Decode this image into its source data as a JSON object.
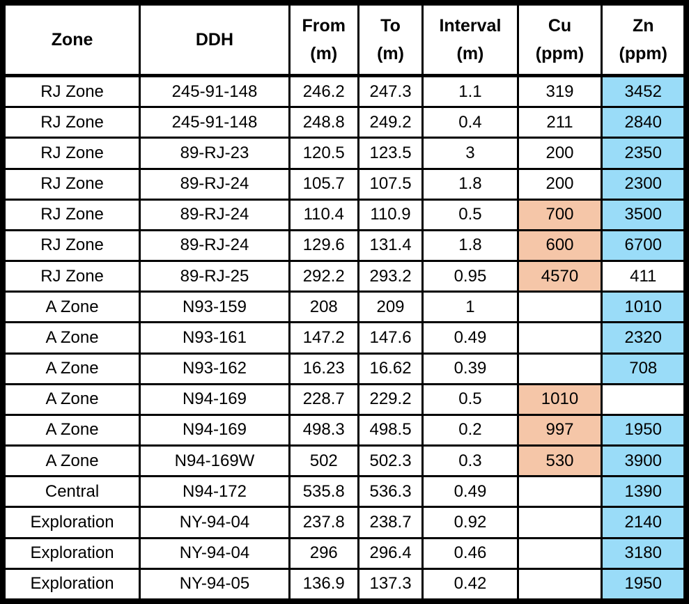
{
  "colors": {
    "cu_highlight": "#F5C6A8",
    "zn_highlight": "#9ADCF8"
  },
  "headers": [
    "Zone",
    "DDH",
    "From\n(m)",
    "To\n(m)",
    "Interval\n(m)",
    "Cu\n(ppm)",
    "Zn\n(ppm)"
  ],
  "rows": [
    {
      "zone": "RJ Zone",
      "ddh": "245-91-148",
      "from": "246.2",
      "to": "247.3",
      "interval": "1.1",
      "cu": "319",
      "zn": "3452",
      "cu_hl": false,
      "zn_hl": true
    },
    {
      "zone": "RJ Zone",
      "ddh": "245-91-148",
      "from": "248.8",
      "to": "249.2",
      "interval": "0.4",
      "cu": "211",
      "zn": "2840",
      "cu_hl": false,
      "zn_hl": true
    },
    {
      "zone": "RJ Zone",
      "ddh": "89-RJ-23",
      "from": "120.5",
      "to": "123.5",
      "interval": "3",
      "cu": "200",
      "zn": "2350",
      "cu_hl": false,
      "zn_hl": true
    },
    {
      "zone": "RJ Zone",
      "ddh": "89-RJ-24",
      "from": "105.7",
      "to": "107.5",
      "interval": "1.8",
      "cu": "200",
      "zn": "2300",
      "cu_hl": false,
      "zn_hl": true
    },
    {
      "zone": "RJ Zone",
      "ddh": "89-RJ-24",
      "from": "110.4",
      "to": "110.9",
      "interval": "0.5",
      "cu": "700",
      "zn": "3500",
      "cu_hl": true,
      "zn_hl": true
    },
    {
      "zone": "RJ Zone",
      "ddh": "89-RJ-24",
      "from": "129.6",
      "to": "131.4",
      "interval": "1.8",
      "cu": "600",
      "zn": "6700",
      "cu_hl": true,
      "zn_hl": true
    },
    {
      "zone": "RJ Zone",
      "ddh": "89-RJ-25",
      "from": "292.2",
      "to": "293.2",
      "interval": "0.95",
      "cu": "4570",
      "zn": "411",
      "cu_hl": true,
      "zn_hl": false
    },
    {
      "zone": "A Zone",
      "ddh": "N93-159",
      "from": "208",
      "to": "209",
      "interval": "1",
      "cu": "",
      "zn": "1010",
      "cu_hl": false,
      "zn_hl": true
    },
    {
      "zone": "A Zone",
      "ddh": "N93-161",
      "from": "147.2",
      "to": "147.6",
      "interval": "0.49",
      "cu": "",
      "zn": "2320",
      "cu_hl": false,
      "zn_hl": true
    },
    {
      "zone": "A Zone",
      "ddh": "N93-162",
      "from": "16.23",
      "to": "16.62",
      "interval": "0.39",
      "cu": "",
      "zn": "708",
      "cu_hl": false,
      "zn_hl": true
    },
    {
      "zone": "A Zone",
      "ddh": "N94-169",
      "from": "228.7",
      "to": "229.2",
      "interval": "0.5",
      "cu": "1010",
      "zn": "",
      "cu_hl": true,
      "zn_hl": false
    },
    {
      "zone": "A Zone",
      "ddh": "N94-169",
      "from": "498.3",
      "to": "498.5",
      "interval": "0.2",
      "cu": "997",
      "zn": "1950",
      "cu_hl": true,
      "zn_hl": true
    },
    {
      "zone": "A Zone",
      "ddh": "N94-169W",
      "from": "502",
      "to": "502.3",
      "interval": "0.3",
      "cu": "530",
      "zn": "3900",
      "cu_hl": true,
      "zn_hl": true
    },
    {
      "zone": "Central",
      "ddh": "N94-172",
      "from": "535.8",
      "to": "536.3",
      "interval": "0.49",
      "cu": "",
      "zn": "1390",
      "cu_hl": false,
      "zn_hl": true
    },
    {
      "zone": "Exploration",
      "ddh": "NY-94-04",
      "from": "237.8",
      "to": "238.7",
      "interval": "0.92",
      "cu": "",
      "zn": "2140",
      "cu_hl": false,
      "zn_hl": true
    },
    {
      "zone": "Exploration",
      "ddh": "NY-94-04",
      "from": "296",
      "to": "296.4",
      "interval": "0.46",
      "cu": "",
      "zn": "3180",
      "cu_hl": false,
      "zn_hl": true
    },
    {
      "zone": "Exploration",
      "ddh": "NY-94-05",
      "from": "136.9",
      "to": "137.3",
      "interval": "0.42",
      "cu": "",
      "zn": "1950",
      "cu_hl": false,
      "zn_hl": true
    }
  ]
}
